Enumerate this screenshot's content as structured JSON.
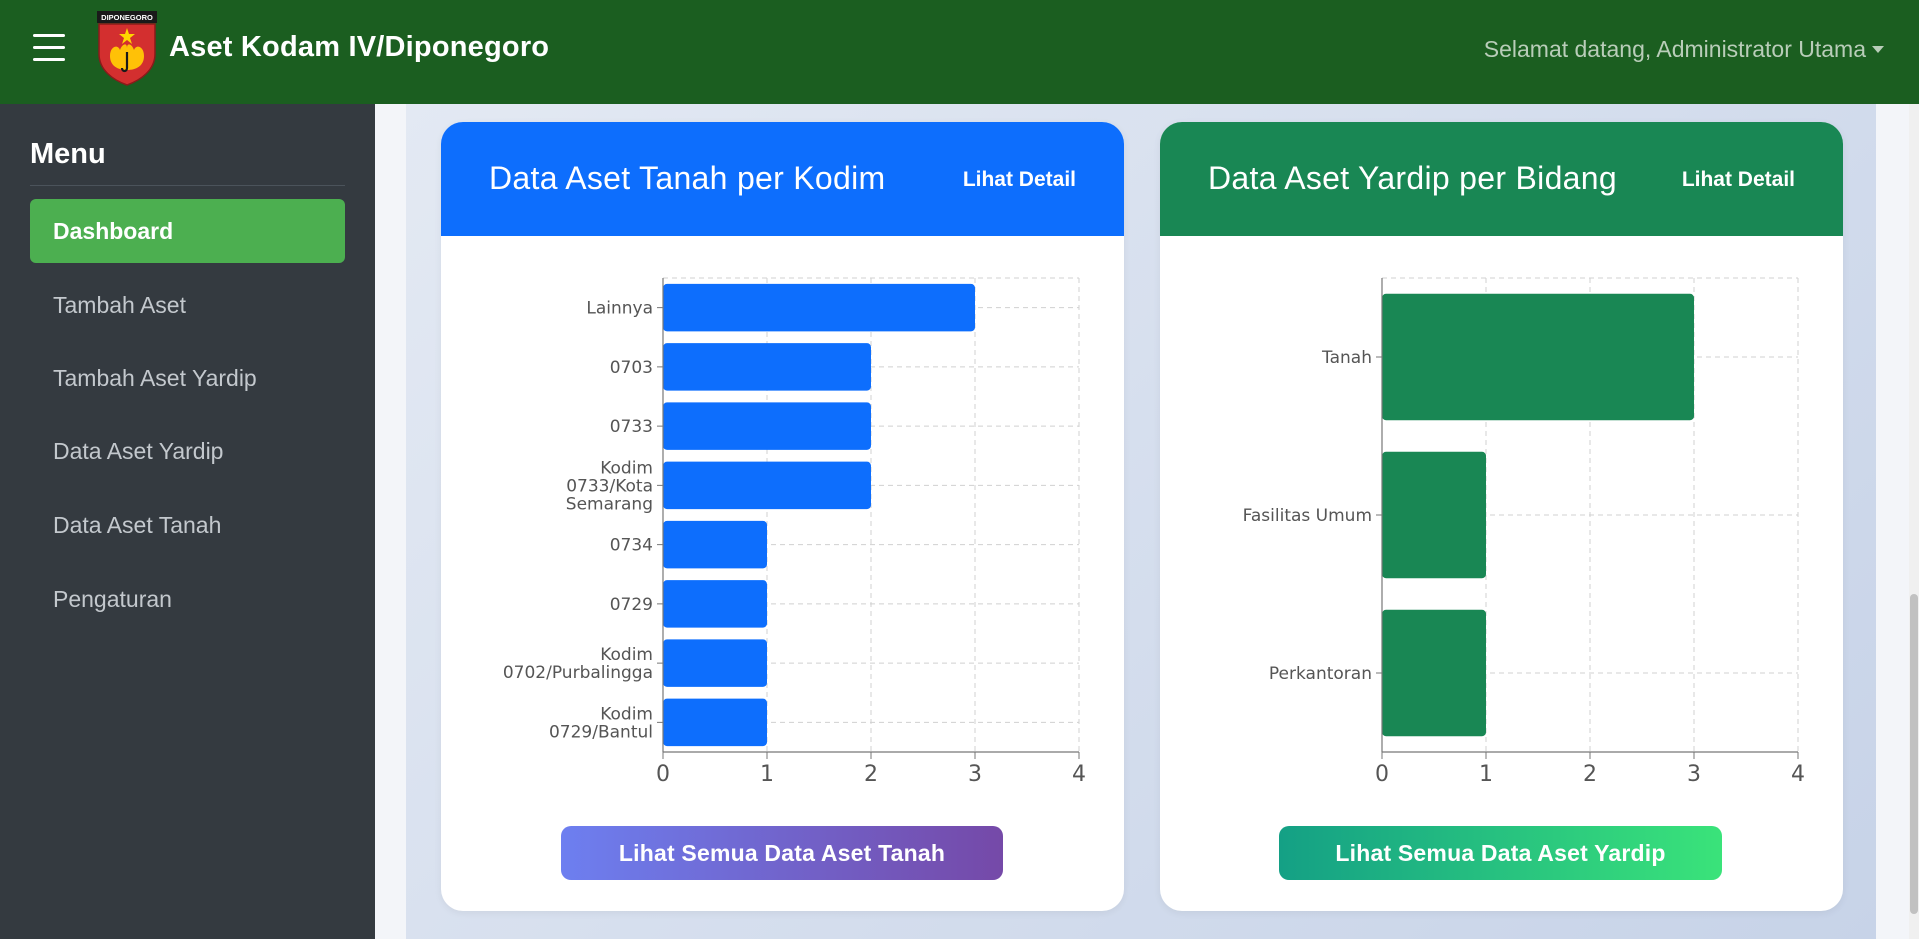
{
  "header": {
    "app_title": "Aset Kodam IV/Diponegoro",
    "logo_text": "DIPONEGORO",
    "user_greeting": "Selamat datang, Administrator Utama"
  },
  "sidebar": {
    "title": "Menu",
    "items": [
      {
        "label": "Dashboard",
        "active": true
      },
      {
        "label": "Tambah Aset",
        "active": false
      },
      {
        "label": "Tambah Aset Yardip",
        "active": false
      },
      {
        "label": "Data Aset Yardip",
        "active": false
      },
      {
        "label": "Data Aset Tanah",
        "active": false
      },
      {
        "label": "Pengaturan",
        "active": false
      }
    ]
  },
  "cards": [
    {
      "title": "Data Aset Tanah per Kodim",
      "detail_label": "Lihat Detail",
      "cta_label": "Lihat Semua Data Aset Tanah",
      "accent": "#0d6efd"
    },
    {
      "title": "Data Aset Yardip per Bidang",
      "detail_label": "Lihat Detail",
      "cta_label": "Lihat Semua Data Aset Yardip",
      "accent": "#198754"
    }
  ],
  "chart_data": [
    {
      "type": "bar",
      "orientation": "horizontal",
      "title": "Data Aset Tanah per Kodim",
      "categories": [
        "Lainnya",
        "0703",
        "0733",
        "Kodim 0733/Kota Semarang",
        "0734",
        "0729",
        "Kodim 0702/Purbalingga",
        "Kodim 0729/Bantul"
      ],
      "values": [
        3,
        2,
        2,
        2,
        1,
        1,
        1,
        1
      ],
      "xlim": [
        0,
        4
      ],
      "xticks": [
        0,
        1,
        2,
        3,
        4
      ],
      "grid": true,
      "color": "#0d6efd"
    },
    {
      "type": "bar",
      "orientation": "horizontal",
      "title": "Data Aset Yardip per Bidang",
      "categories": [
        "Tanah",
        "Fasilitas Umum",
        "Perkantoran"
      ],
      "values": [
        3,
        1,
        1
      ],
      "xlim": [
        0,
        4
      ],
      "xticks": [
        0,
        1,
        2,
        3,
        4
      ],
      "grid": true,
      "color": "#198754"
    }
  ]
}
